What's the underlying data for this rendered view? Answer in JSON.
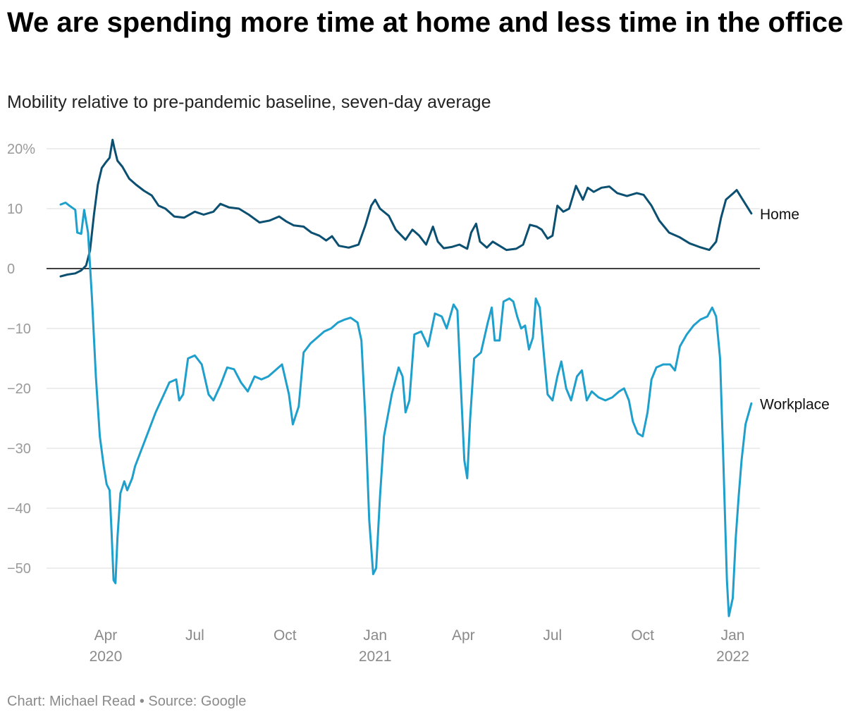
{
  "title": "We are spending more time at home and less time in the office",
  "subtitle": "Mobility relative to pre-pandemic baseline, seven-day average",
  "footer": "Chart: Michael Read • Source: Google",
  "chart_data": {
    "type": "line",
    "title": "We are spending more time at home and less time in the office",
    "subtitle": "Mobility relative to pre-pandemic baseline, seven-day average",
    "xlabel": "",
    "ylabel": "",
    "x_range": [
      "2020-02-15",
      "2022-01-24"
    ],
    "ylim": [
      -58,
      22
    ],
    "y_ticks": [
      {
        "value": 20,
        "label": "20%"
      },
      {
        "value": 10,
        "label": "10"
      },
      {
        "value": 0,
        "label": "0"
      },
      {
        "value": -10,
        "label": "−10"
      },
      {
        "value": -20,
        "label": "−20"
      },
      {
        "value": -30,
        "label": "−30"
      },
      {
        "value": -40,
        "label": "−40"
      },
      {
        "value": -50,
        "label": "−50"
      }
    ],
    "x_ticks": [
      {
        "date": "2020-04-01",
        "label": "Apr",
        "year": "2020"
      },
      {
        "date": "2020-07-01",
        "label": "Jul",
        "year": ""
      },
      {
        "date": "2020-10-01",
        "label": "Oct",
        "year": ""
      },
      {
        "date": "2021-01-01",
        "label": "Jan",
        "year": "2021"
      },
      {
        "date": "2021-04-01",
        "label": "Apr",
        "year": ""
      },
      {
        "date": "2021-07-01",
        "label": "Jul",
        "year": ""
      },
      {
        "date": "2021-10-01",
        "label": "Oct",
        "year": ""
      },
      {
        "date": "2022-01-01",
        "label": "Jan",
        "year": "2022"
      }
    ],
    "grid": true,
    "legend": "direct labels at line ends",
    "series": [
      {
        "name": "Home",
        "color": "#0b4f71",
        "points": [
          [
            "2020-02-15",
            -1.3
          ],
          [
            "2020-02-22",
            -1.0
          ],
          [
            "2020-03-01",
            -0.8
          ],
          [
            "2020-03-07",
            -0.3
          ],
          [
            "2020-03-12",
            0.5
          ],
          [
            "2020-03-16",
            3.0
          ],
          [
            "2020-03-20",
            9.0
          ],
          [
            "2020-03-24",
            14.0
          ],
          [
            "2020-03-28",
            16.8
          ],
          [
            "2020-04-01",
            17.7
          ],
          [
            "2020-04-05",
            18.5
          ],
          [
            "2020-04-08",
            21.5
          ],
          [
            "2020-04-10",
            20.0
          ],
          [
            "2020-04-13",
            18.0
          ],
          [
            "2020-04-18",
            17.0
          ],
          [
            "2020-04-25",
            15.0
          ],
          [
            "2020-05-02",
            14.0
          ],
          [
            "2020-05-10",
            13.0
          ],
          [
            "2020-05-18",
            12.2
          ],
          [
            "2020-05-25",
            10.5
          ],
          [
            "2020-06-01",
            10.0
          ],
          [
            "2020-06-10",
            8.7
          ],
          [
            "2020-06-20",
            8.5
          ],
          [
            "2020-07-01",
            9.5
          ],
          [
            "2020-07-10",
            9.0
          ],
          [
            "2020-07-20",
            9.5
          ],
          [
            "2020-07-27",
            10.8
          ],
          [
            "2020-08-05",
            10.2
          ],
          [
            "2020-08-15",
            10.0
          ],
          [
            "2020-08-25",
            9.0
          ],
          [
            "2020-09-05",
            7.7
          ],
          [
            "2020-09-15",
            8.0
          ],
          [
            "2020-09-25",
            8.7
          ],
          [
            "2020-10-02",
            7.9
          ],
          [
            "2020-10-10",
            7.2
          ],
          [
            "2020-10-20",
            7.0
          ],
          [
            "2020-10-28",
            6.0
          ],
          [
            "2020-11-05",
            5.5
          ],
          [
            "2020-11-12",
            4.7
          ],
          [
            "2020-11-18",
            5.4
          ],
          [
            "2020-11-25",
            3.8
          ],
          [
            "2020-12-05",
            3.5
          ],
          [
            "2020-12-15",
            4.0
          ],
          [
            "2020-12-22",
            7.2
          ],
          [
            "2020-12-28",
            10.5
          ],
          [
            "2021-01-01",
            11.5
          ],
          [
            "2021-01-06",
            10.0
          ],
          [
            "2021-01-15",
            8.8
          ],
          [
            "2021-01-22",
            6.5
          ],
          [
            "2021-02-01",
            4.8
          ],
          [
            "2021-02-08",
            6.5
          ],
          [
            "2021-02-15",
            5.5
          ],
          [
            "2021-02-22",
            4.0
          ],
          [
            "2021-03-01",
            7.0
          ],
          [
            "2021-03-06",
            4.5
          ],
          [
            "2021-03-12",
            3.4
          ],
          [
            "2021-03-20",
            3.6
          ],
          [
            "2021-03-28",
            4.0
          ],
          [
            "2021-04-05",
            3.3
          ],
          [
            "2021-04-09",
            6.0
          ],
          [
            "2021-04-14",
            7.5
          ],
          [
            "2021-04-18",
            4.5
          ],
          [
            "2021-04-25",
            3.5
          ],
          [
            "2021-05-01",
            4.5
          ],
          [
            "2021-05-08",
            3.8
          ],
          [
            "2021-05-15",
            3.1
          ],
          [
            "2021-05-25",
            3.3
          ],
          [
            "2021-06-01",
            4.0
          ],
          [
            "2021-06-08",
            7.3
          ],
          [
            "2021-06-15",
            7.0
          ],
          [
            "2021-06-20",
            6.5
          ],
          [
            "2021-06-26",
            5.0
          ],
          [
            "2021-07-01",
            5.5
          ],
          [
            "2021-07-06",
            10.5
          ],
          [
            "2021-07-12",
            9.5
          ],
          [
            "2021-07-18",
            10.0
          ],
          [
            "2021-07-25",
            13.8
          ],
          [
            "2021-08-01",
            11.5
          ],
          [
            "2021-08-06",
            13.5
          ],
          [
            "2021-08-12",
            12.8
          ],
          [
            "2021-08-20",
            13.5
          ],
          [
            "2021-08-28",
            13.7
          ],
          [
            "2021-09-05",
            12.6
          ],
          [
            "2021-09-15",
            12.1
          ],
          [
            "2021-09-25",
            12.6
          ],
          [
            "2021-10-02",
            12.3
          ],
          [
            "2021-10-10",
            10.5
          ],
          [
            "2021-10-18",
            8.0
          ],
          [
            "2021-10-28",
            6.0
          ],
          [
            "2021-11-08",
            5.2
          ],
          [
            "2021-11-18",
            4.2
          ],
          [
            "2021-11-28",
            3.6
          ],
          [
            "2021-12-08",
            3.1
          ],
          [
            "2021-12-15",
            4.5
          ],
          [
            "2021-12-20",
            8.5
          ],
          [
            "2021-12-25",
            11.5
          ],
          [
            "2022-01-01",
            12.5
          ],
          [
            "2022-01-05",
            13.1
          ],
          [
            "2022-01-10",
            11.8
          ],
          [
            "2022-01-15",
            10.5
          ],
          [
            "2022-01-20",
            9.2
          ]
        ]
      },
      {
        "name": "Workplace",
        "color": "#1fa0cc",
        "points": [
          [
            "2020-02-15",
            10.7
          ],
          [
            "2020-02-20",
            11.0
          ],
          [
            "2020-02-24",
            10.5
          ],
          [
            "2020-03-01",
            9.8
          ],
          [
            "2020-03-03",
            6.0
          ],
          [
            "2020-03-07",
            5.8
          ],
          [
            "2020-03-10",
            9.8
          ],
          [
            "2020-03-14",
            6.0
          ],
          [
            "2020-03-18",
            -5.0
          ],
          [
            "2020-03-22",
            -18.0
          ],
          [
            "2020-03-26",
            -28.0
          ],
          [
            "2020-03-30",
            -33.0
          ],
          [
            "2020-04-02",
            -36.0
          ],
          [
            "2020-04-05",
            -37.0
          ],
          [
            "2020-04-07",
            -44.0
          ],
          [
            "2020-04-09",
            -52.0
          ],
          [
            "2020-04-11",
            -52.5
          ],
          [
            "2020-04-13",
            -45.0
          ],
          [
            "2020-04-16",
            -37.5
          ],
          [
            "2020-04-20",
            -35.5
          ],
          [
            "2020-04-23",
            -37.0
          ],
          [
            "2020-04-28",
            -35.0
          ],
          [
            "2020-05-01",
            -33.0
          ],
          [
            "2020-05-08",
            -30.0
          ],
          [
            "2020-05-15",
            -27.0
          ],
          [
            "2020-05-22",
            -24.0
          ],
          [
            "2020-05-29",
            -21.5
          ],
          [
            "2020-06-05",
            -19.0
          ],
          [
            "2020-06-12",
            -18.5
          ],
          [
            "2020-06-15",
            -22.0
          ],
          [
            "2020-06-19",
            -21.0
          ],
          [
            "2020-06-24",
            -15.0
          ],
          [
            "2020-07-01",
            -14.5
          ],
          [
            "2020-07-08",
            -16.0
          ],
          [
            "2020-07-15",
            -21.0
          ],
          [
            "2020-07-20",
            -22.0
          ],
          [
            "2020-07-27",
            -19.5
          ],
          [
            "2020-08-03",
            -16.5
          ],
          [
            "2020-08-10",
            -16.8
          ],
          [
            "2020-08-17",
            -19.0
          ],
          [
            "2020-08-24",
            -20.5
          ],
          [
            "2020-08-31",
            -18.0
          ],
          [
            "2020-09-07",
            -18.5
          ],
          [
            "2020-09-14",
            -18.0
          ],
          [
            "2020-09-21",
            -17.0
          ],
          [
            "2020-09-28",
            -16.0
          ],
          [
            "2020-10-05",
            -21.0
          ],
          [
            "2020-10-09",
            -26.0
          ],
          [
            "2020-10-15",
            -23.0
          ],
          [
            "2020-10-20",
            -14.0
          ],
          [
            "2020-10-27",
            -12.5
          ],
          [
            "2020-11-03",
            -11.5
          ],
          [
            "2020-11-10",
            -10.5
          ],
          [
            "2020-11-17",
            -10.0
          ],
          [
            "2020-11-24",
            -9.0
          ],
          [
            "2020-12-01",
            -8.5
          ],
          [
            "2020-12-07",
            -8.2
          ],
          [
            "2020-12-14",
            -9.0
          ],
          [
            "2020-12-18",
            -12.0
          ],
          [
            "2020-12-22",
            -25.0
          ],
          [
            "2020-12-26",
            -42.0
          ],
          [
            "2020-12-30",
            -51.0
          ],
          [
            "2021-01-02",
            -50.0
          ],
          [
            "2021-01-06",
            -38.0
          ],
          [
            "2021-01-10",
            -28.0
          ],
          [
            "2021-01-18",
            -21.0
          ],
          [
            "2021-01-25",
            -16.5
          ],
          [
            "2021-01-29",
            -18.0
          ],
          [
            "2021-02-01",
            -24.0
          ],
          [
            "2021-02-05",
            -22.0
          ],
          [
            "2021-02-10",
            -11.0
          ],
          [
            "2021-02-17",
            -10.5
          ],
          [
            "2021-02-24",
            -13.0
          ],
          [
            "2021-03-03",
            -7.5
          ],
          [
            "2021-03-10",
            -8.0
          ],
          [
            "2021-03-15",
            -10.0
          ],
          [
            "2021-03-22",
            -6.0
          ],
          [
            "2021-03-26",
            -7.0
          ],
          [
            "2021-03-29",
            -18.0
          ],
          [
            "2021-04-02",
            -32.0
          ],
          [
            "2021-04-05",
            -35.0
          ],
          [
            "2021-04-08",
            -25.0
          ],
          [
            "2021-04-12",
            -15.0
          ],
          [
            "2021-04-19",
            -14.0
          ],
          [
            "2021-04-26",
            -9.0
          ],
          [
            "2021-04-30",
            -6.5
          ],
          [
            "2021-05-03",
            -12.0
          ],
          [
            "2021-05-08",
            -12.0
          ],
          [
            "2021-05-12",
            -5.5
          ],
          [
            "2021-05-18",
            -5.0
          ],
          [
            "2021-05-22",
            -5.5
          ],
          [
            "2021-05-26",
            -8.0
          ],
          [
            "2021-05-30",
            -10.0
          ],
          [
            "2021-06-03",
            -9.5
          ],
          [
            "2021-06-07",
            -13.5
          ],
          [
            "2021-06-11",
            -11.5
          ],
          [
            "2021-06-14",
            -5.0
          ],
          [
            "2021-06-18",
            -6.5
          ],
          [
            "2021-06-22",
            -14.0
          ],
          [
            "2021-06-26",
            -21.0
          ],
          [
            "2021-07-01",
            -22.0
          ],
          [
            "2021-07-06",
            -18.0
          ],
          [
            "2021-07-10",
            -15.5
          ],
          [
            "2021-07-15",
            -20.0
          ],
          [
            "2021-07-20",
            -22.0
          ],
          [
            "2021-07-26",
            -18.0
          ],
          [
            "2021-07-31",
            -17.0
          ],
          [
            "2021-08-05",
            -22.0
          ],
          [
            "2021-08-10",
            -20.5
          ],
          [
            "2021-08-17",
            -21.5
          ],
          [
            "2021-08-24",
            -22.0
          ],
          [
            "2021-08-31",
            -21.5
          ],
          [
            "2021-09-07",
            -20.5
          ],
          [
            "2021-09-12",
            -20.0
          ],
          [
            "2021-09-17",
            -22.0
          ],
          [
            "2021-09-21",
            -25.5
          ],
          [
            "2021-09-26",
            -27.5
          ],
          [
            "2021-10-01",
            -28.0
          ],
          [
            "2021-10-06",
            -24.0
          ],
          [
            "2021-10-10",
            -18.5
          ],
          [
            "2021-10-15",
            -16.5
          ],
          [
            "2021-10-22",
            -16.0
          ],
          [
            "2021-10-29",
            -16.0
          ],
          [
            "2021-11-03",
            -17.0
          ],
          [
            "2021-11-08",
            -13.0
          ],
          [
            "2021-11-15",
            -11.0
          ],
          [
            "2021-11-22",
            -9.5
          ],
          [
            "2021-11-29",
            -8.5
          ],
          [
            "2021-12-06",
            -8.0
          ],
          [
            "2021-12-11",
            -6.5
          ],
          [
            "2021-12-15",
            -8.0
          ],
          [
            "2021-12-19",
            -15.0
          ],
          [
            "2021-12-22",
            -30.0
          ],
          [
            "2021-12-26",
            -52.0
          ],
          [
            "2021-12-28",
            -58.0
          ],
          [
            "2022-01-01",
            -55.0
          ],
          [
            "2022-01-04",
            -45.0
          ],
          [
            "2022-01-07",
            -38.0
          ],
          [
            "2022-01-10",
            -32.0
          ],
          [
            "2022-01-14",
            -26.0
          ],
          [
            "2022-01-20",
            -22.5
          ]
        ]
      }
    ]
  }
}
